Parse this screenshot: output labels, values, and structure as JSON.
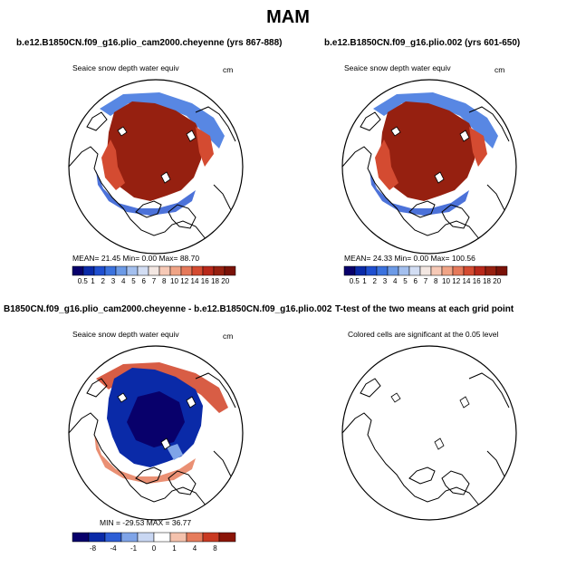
{
  "figure_title": "MAM",
  "panels": [
    {
      "title": "b.e12.B1850CN.f09_g16.plio_cam2000.cheyenne (yrs 867-888)",
      "variable": "Seaice snow depth water equiv",
      "units": "cm",
      "stats": "MEAN=   21.45   Min=     0.00   Max=   88.70",
      "colorbar_labels": [
        "0.5",
        "1",
        "2",
        "3",
        "4",
        "5",
        "6",
        "7",
        "8",
        "10",
        "12",
        "14",
        "16",
        "18",
        "20"
      ],
      "field": "mean"
    },
    {
      "title": "b.e12.B1850CN.f09_g16.plio.002 (yrs 601-650)",
      "variable": "Seaice snow depth water equiv",
      "units": "cm",
      "stats": "MEAN=   24.33   Min=     0.00   Max=  100.56",
      "colorbar_labels": [
        "0.5",
        "1",
        "2",
        "3",
        "4",
        "5",
        "6",
        "7",
        "8",
        "10",
        "12",
        "14",
        "16",
        "18",
        "20"
      ],
      "field": "mean"
    },
    {
      "title": "B1850CN.f09_g16.plio_cam2000.cheyenne - b.e12.B1850CN.f09_g16.plio.002",
      "variable": "Seaice snow depth water equiv",
      "units": "cm",
      "stats": "MIN = -29.53  MAX =  36.77",
      "colorbar_labels": [
        "-8",
        "-4",
        "-1",
        "0",
        "1",
        "4",
        "8"
      ],
      "field": "difference"
    },
    {
      "title": "T-test of the two means at each grid point",
      "variable": "Colored cells are significant at the 0.05 level",
      "units": "",
      "stats": "",
      "colorbar_labels": [],
      "field": "ttest"
    }
  ],
  "colors": {
    "mean_scale": [
      "#08006b",
      "#0a2aa8",
      "#1f4fd0",
      "#3b72de",
      "#6c9ae6",
      "#a3bfee",
      "#d2ddf3",
      "#f3e7e2",
      "#f6c9b6",
      "#f0a486",
      "#e5795a",
      "#d44b31",
      "#b8281a",
      "#962010",
      "#7a1208"
    ],
    "diff_scale": [
      "#08006b",
      "#0a2aa8",
      "#2d5ed6",
      "#7fa4e8",
      "#c9d7f2",
      "#ffffff",
      "#f4c2ad",
      "#e67c5c",
      "#c93a22",
      "#8b1508"
    ],
    "land_line": "#000000"
  }
}
